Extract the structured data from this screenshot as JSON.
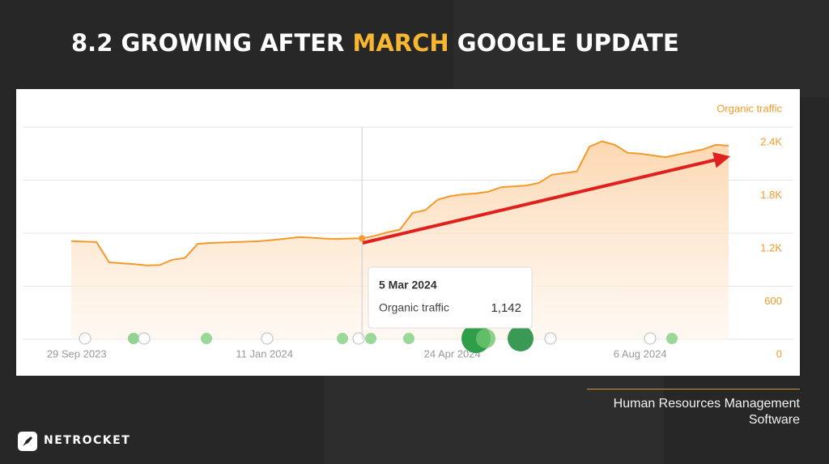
{
  "slide": {
    "title": [
      "8.2 GROWING AFTER",
      "MARCH",
      "GOOGLE UPDATE"
    ],
    "caption": "Human Resources Management Software",
    "brand": "NETROCKET"
  },
  "chart_data": {
    "type": "line",
    "x": [
      "26 Sep 2023",
      "3 Oct 2023",
      "10 Oct 2023",
      "17 Oct 2023",
      "24 Oct 2023",
      "31 Oct 2023",
      "7 Nov 2023",
      "14 Nov 2023",
      "21 Nov 2023",
      "28 Nov 2023",
      "5 Dec 2023",
      "12 Dec 2023",
      "19 Dec 2023",
      "26 Dec 2023",
      "2 Jan 2024",
      "9 Jan 2024",
      "16 Jan 2024",
      "23 Jan 2024",
      "30 Jan 2024",
      "6 Feb 2024",
      "13 Feb 2024",
      "20 Feb 2024",
      "27 Feb 2024",
      "5 Mar 2024",
      "12 Mar 2024",
      "19 Mar 2024",
      "26 Mar 2024",
      "2 Apr 2024",
      "9 Apr 2024",
      "16 Apr 2024",
      "23 Apr 2024",
      "30 Apr 2024",
      "7 May 2024",
      "14 May 2024",
      "21 May 2024",
      "28 May 2024",
      "4 Jun 2024",
      "11 Jun 2024",
      "18 Jun 2024",
      "25 Jun 2024",
      "2 Jul 2024",
      "9 Jul 2024",
      "16 Jul 2024",
      "23 Jul 2024",
      "30 Jul 2024",
      "6 Aug 2024",
      "13 Aug 2024",
      "20 Aug 2024",
      "27 Aug 2024",
      "3 Sep 2024",
      "10 Sep 2024",
      "17 Sep 2024",
      "24 Sep 2024"
    ],
    "series": [
      {
        "name": "Organic traffic",
        "color": "#f39a2b",
        "values": [
          1110,
          1105,
          1100,
          870,
          860,
          850,
          835,
          840,
          900,
          920,
          1080,
          1090,
          1095,
          1100,
          1105,
          1110,
          1125,
          1140,
          1155,
          1150,
          1140,
          1135,
          1140,
          1142,
          1170,
          1210,
          1240,
          1430,
          1460,
          1580,
          1620,
          1640,
          1650,
          1670,
          1720,
          1730,
          1740,
          1770,
          1860,
          1880,
          1900,
          2180,
          2240,
          2200,
          2110,
          2100,
          2080,
          2060,
          2090,
          2120,
          2150,
          2200,
          2190
        ]
      }
    ],
    "xlim": [
      "26 Sep 2023",
      "24 Sep 2024"
    ],
    "xticks": [
      "29 Sep 2023",
      "11 Jan 2024",
      "24 Apr 2024",
      "6 Aug 2024"
    ],
    "ylim": [
      0,
      2400
    ],
    "yticks": [
      0,
      600,
      {
        "value": 1200,
        "label": "1.2K"
      },
      {
        "value": 1800,
        "label": "1.8K"
      },
      {
        "value": 2400,
        "label": "2.4K"
      }
    ],
    "grid": true,
    "tooltip": {
      "x": "5 Mar 2024",
      "value": 1142,
      "value_label": "1,142"
    }
  }
}
